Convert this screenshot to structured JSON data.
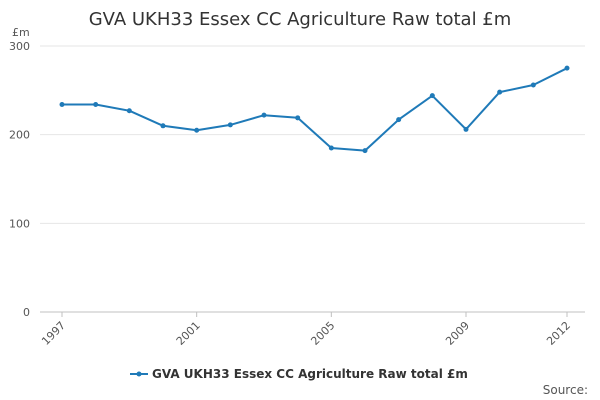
{
  "chart_data": {
    "type": "line",
    "title": "GVA UKH33 Essex CC Agriculture Raw total £m",
    "ylabel": "£m",
    "xlabel": "",
    "x": [
      1997,
      1998,
      1999,
      2000,
      2001,
      2002,
      2003,
      2004,
      2005,
      2006,
      2007,
      2008,
      2009,
      2010,
      2011,
      2012
    ],
    "x_tick_labels": [
      "1997",
      "2001",
      "2005",
      "2009",
      "2012"
    ],
    "y_tick_labels": [
      "0",
      "100",
      "200",
      "300"
    ],
    "ylim": [
      0,
      300
    ],
    "grid": true,
    "legend_position": "bottom",
    "series": [
      {
        "name": "GVA UKH33 Essex CC Agriculture Raw total £m",
        "color": "#1f7ab8",
        "values": [
          234,
          234,
          227,
          210,
          205,
          211,
          222,
          219,
          185,
          182,
          217,
          244,
          206,
          248,
          256,
          275
        ]
      }
    ],
    "source_label": "Source:"
  }
}
